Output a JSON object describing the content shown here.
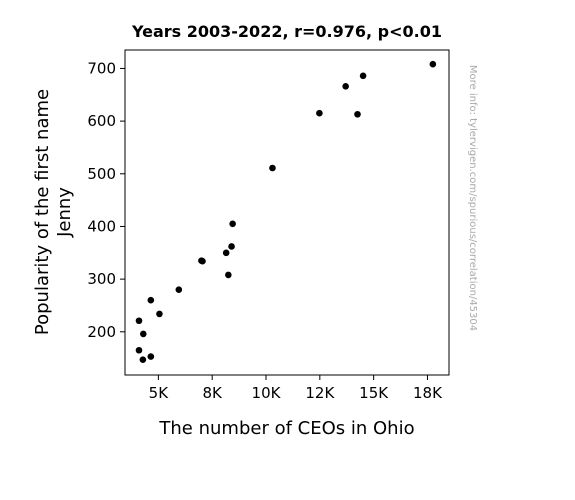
{
  "chart_data": {
    "type": "scatter",
    "title": "Years 2003-2022, r=0.976, p<0.01",
    "xlabel": "The number of CEOs in Ohio",
    "ylabel_lines": [
      "Popularity of the first name",
      "Jenny"
    ],
    "xlim": [
      3450,
      18500
    ],
    "ylim": [
      118,
      735
    ],
    "xticks": [
      {
        "value": 5000,
        "label": "5K"
      },
      {
        "value": 7500,
        "label": "8K"
      },
      {
        "value": 10000,
        "label": "10K"
      },
      {
        "value": 12500,
        "label": "12K"
      },
      {
        "value": 15000,
        "label": "15K"
      },
      {
        "value": 17500,
        "label": "18K"
      }
    ],
    "yticks": [
      200,
      300,
      400,
      500,
      600,
      700
    ],
    "points": [
      {
        "x": 4100,
        "y": 165
      },
      {
        "x": 4280,
        "y": 147
      },
      {
        "x": 4650,
        "y": 153
      },
      {
        "x": 4100,
        "y": 221
      },
      {
        "x": 4300,
        "y": 196
      },
      {
        "x": 4650,
        "y": 260
      },
      {
        "x": 5050,
        "y": 234
      },
      {
        "x": 5950,
        "y": 280
      },
      {
        "x": 7000,
        "y": 335
      },
      {
        "x": 7050,
        "y": 334
      },
      {
        "x": 8150,
        "y": 350
      },
      {
        "x": 8250,
        "y": 308
      },
      {
        "x": 8400,
        "y": 362
      },
      {
        "x": 8450,
        "y": 405
      },
      {
        "x": 10300,
        "y": 511
      },
      {
        "x": 12480,
        "y": 615
      },
      {
        "x": 13700,
        "y": 666
      },
      {
        "x": 14250,
        "y": 613
      },
      {
        "x": 14510,
        "y": 686
      },
      {
        "x": 17750,
        "y": 708
      }
    ],
    "marker_color": "#000000",
    "grid": false,
    "watermark": "More info: tylervigen.com/spurious/correlation/45304"
  }
}
